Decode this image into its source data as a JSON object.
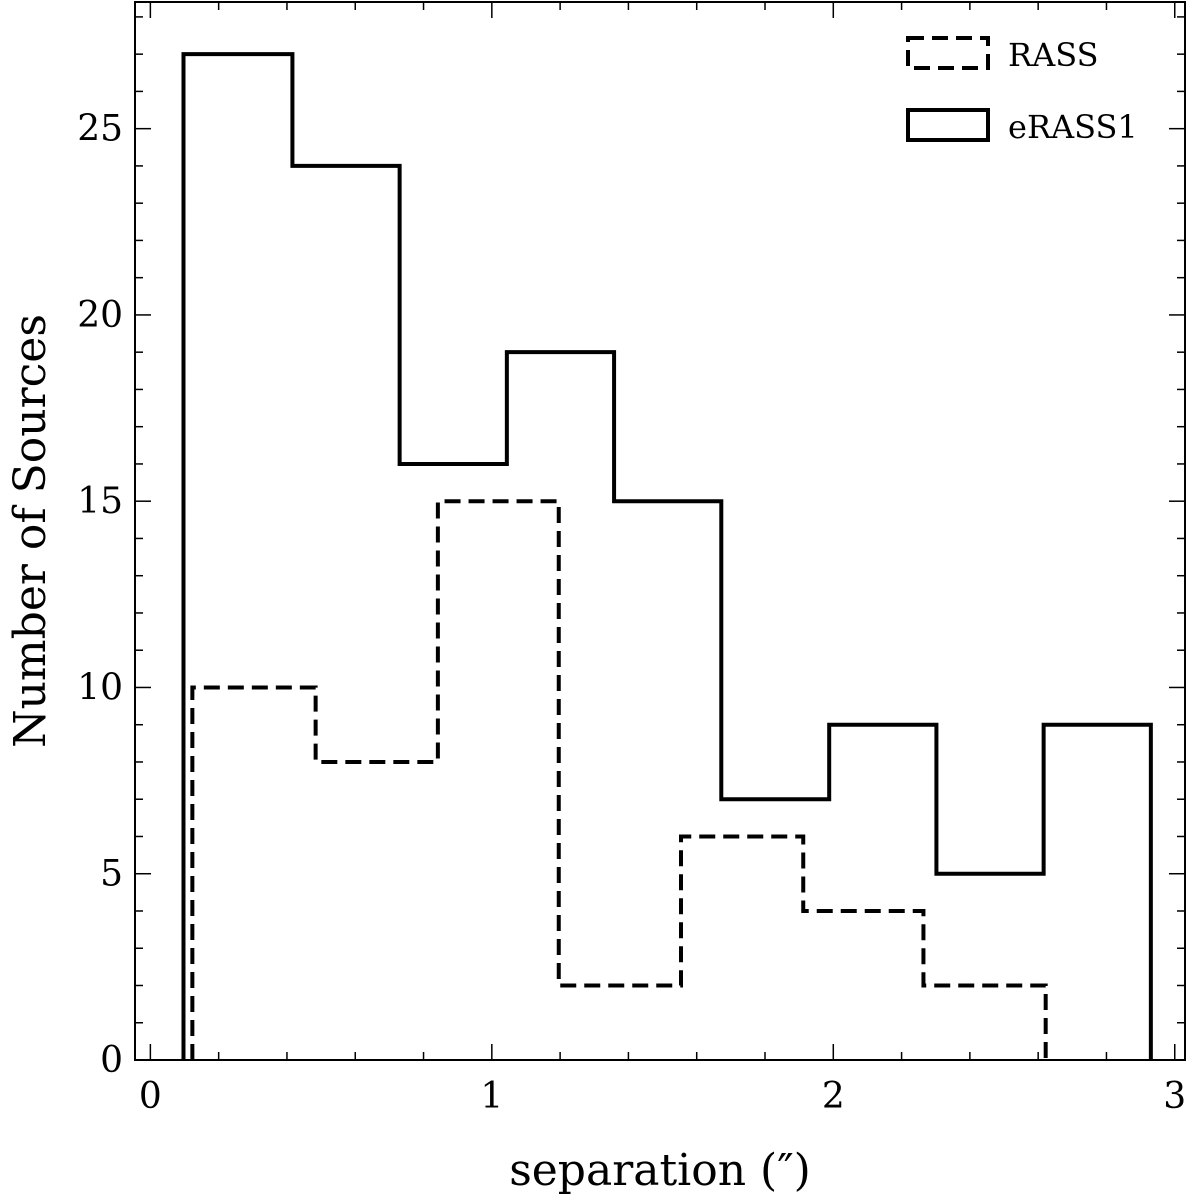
{
  "chart_data": {
    "type": "histogram",
    "title": "",
    "xlabel": "separation (″)",
    "ylabel": "Number of Sources",
    "xlim": [
      -0.045,
      3.03
    ],
    "ylim": [
      0,
      28.4
    ],
    "xticks": [
      0,
      1,
      2,
      3
    ],
    "xtick_labels": [
      "0",
      "1",
      "2",
      "3"
    ],
    "xminor_step": 0.2,
    "yticks": [
      0,
      5,
      10,
      15,
      20,
      25
    ],
    "ytick_labels": [
      "0",
      "5",
      "10",
      "15",
      "20",
      "25"
    ],
    "yminor_step": 1,
    "grid": false,
    "legend_position": "top-right",
    "series": [
      {
        "name": "RASS",
        "style": "dashed",
        "color": "#000000",
        "bin_edges": [
          0.123,
          0.484,
          0.842,
          1.196,
          1.554,
          1.912,
          2.264,
          2.622
        ],
        "counts": [
          10,
          8,
          15,
          2,
          6,
          4,
          2
        ]
      },
      {
        "name": "eRASS1",
        "style": "solid",
        "color": "#000000",
        "bin_edges": [
          0.097,
          0.416,
          0.73,
          1.044,
          1.358,
          1.672,
          1.988,
          2.302,
          2.616,
          2.93
        ],
        "counts": [
          27,
          24,
          16,
          19,
          15,
          7,
          9,
          5,
          9
        ]
      }
    ]
  }
}
